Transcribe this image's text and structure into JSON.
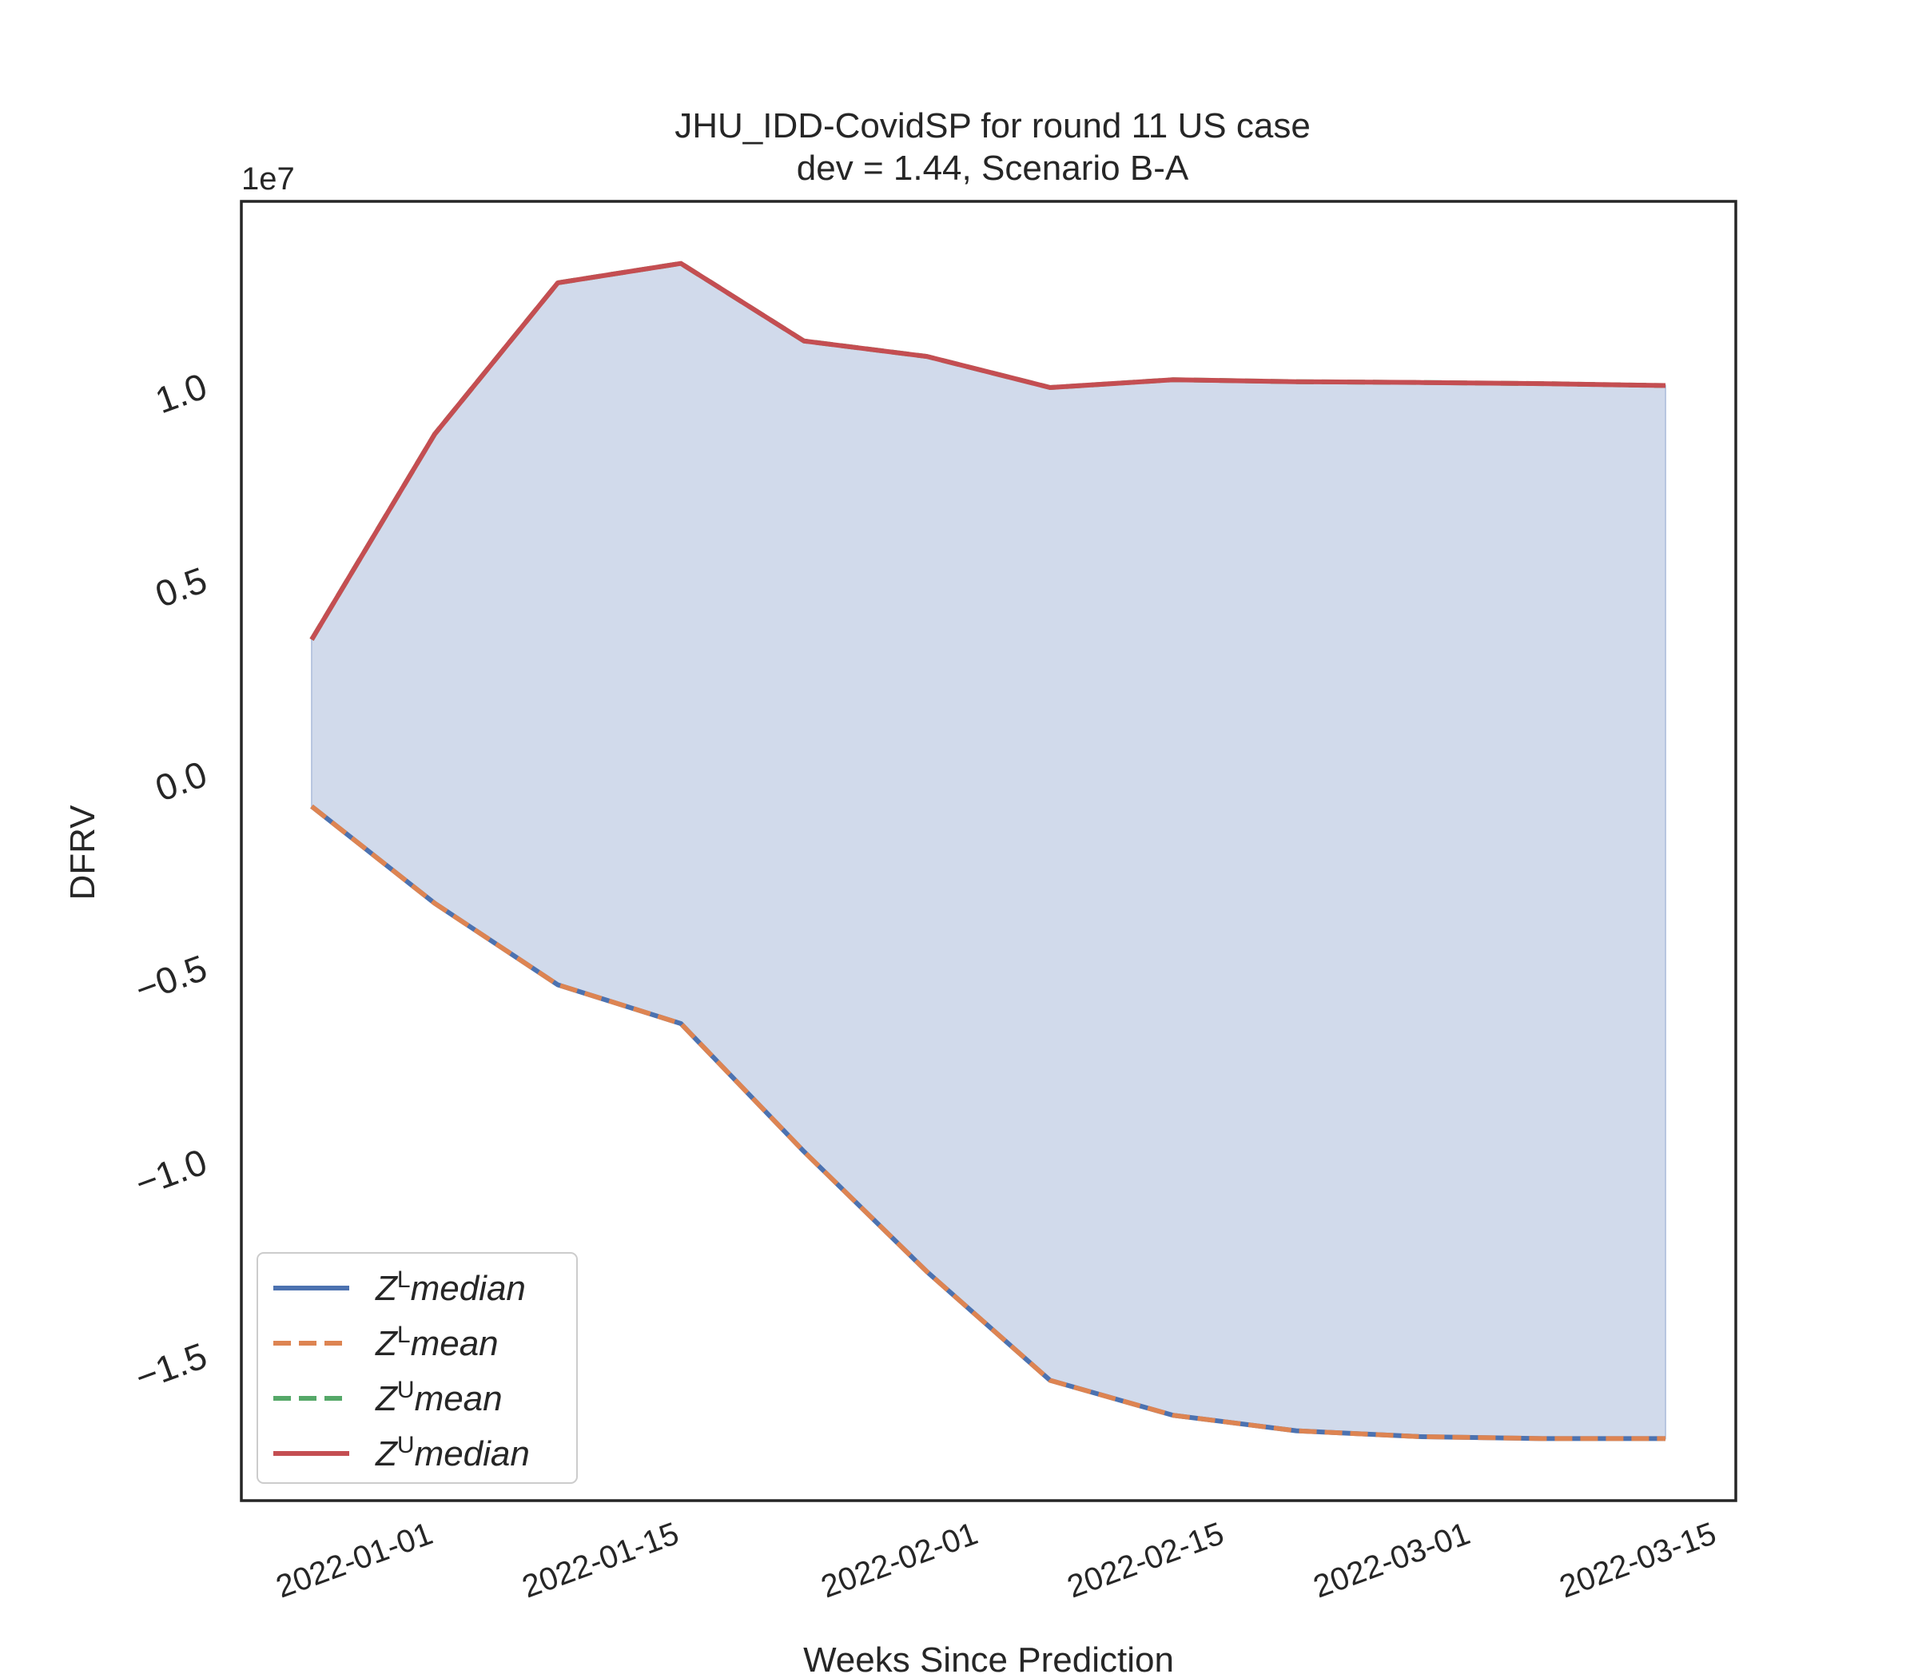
{
  "chart_data": {
    "type": "line",
    "title": "JHU_IDD-CovidSP for round 11 US case",
    "subtitle": "dev = 1.44, Scenario B-A",
    "xlabel": "Weeks Since Prediction",
    "ylabel": "DFRV",
    "y_offset_label": "1e7",
    "x": [
      "2021-12-25",
      "2022-01-01",
      "2022-01-08",
      "2022-01-15",
      "2022-01-22",
      "2022-01-29",
      "2022-02-05",
      "2022-02-12",
      "2022-02-19",
      "2022-02-26",
      "2022-03-05",
      "2022-03-12"
    ],
    "x_ticks": [
      "2022-01-01",
      "2022-01-15",
      "2022-02-01",
      "2022-02-15",
      "2022-03-01",
      "2022-03-15"
    ],
    "x_range": [
      "2021-12-21",
      "2022-03-16"
    ],
    "y_ticks": [
      1.0,
      0.5,
      0.0,
      -0.5,
      -1.0,
      -1.5
    ],
    "ylim": [
      -1.88,
      1.47
    ],
    "grid": false,
    "legend_position": "lower-left",
    "fill_between": {
      "lower": "Z^L median",
      "upper": "Z^U median",
      "color": "#d1daeb"
    },
    "series": [
      {
        "name": "Z^L median",
        "label_base": "Z",
        "label_sup": "L",
        "label_rest": "median",
        "style": "solid",
        "color": "#4c72b0",
        "values": [
          -0.09,
          -0.34,
          -0.55,
          -0.65,
          -0.98,
          -1.29,
          -1.57,
          -1.66,
          -1.7,
          -1.715,
          -1.72,
          -1.72
        ]
      },
      {
        "name": "Z^L mean",
        "label_base": "Z",
        "label_sup": "L",
        "label_rest": "mean",
        "style": "dashed",
        "color": "#dd8452",
        "values": [
          -0.09,
          -0.34,
          -0.55,
          -0.65,
          -0.98,
          -1.29,
          -1.57,
          -1.66,
          -1.7,
          -1.715,
          -1.72,
          -1.72
        ]
      },
      {
        "name": "Z^U mean",
        "label_base": "Z",
        "label_sup": "U",
        "label_rest": "mean",
        "style": "dashed",
        "color": "#55a868",
        "values": [
          0.34,
          0.87,
          1.26,
          1.31,
          1.11,
          1.07,
          0.99,
          1.01,
          1.005,
          1.003,
          1.0,
          0.995
        ]
      },
      {
        "name": "Z^U median",
        "label_base": "Z",
        "label_sup": "U",
        "label_rest": "median",
        "style": "solid",
        "color": "#c44e52",
        "values": [
          0.34,
          0.87,
          1.26,
          1.31,
          1.11,
          1.07,
          0.99,
          1.01,
          1.005,
          1.003,
          1.0,
          0.995
        ]
      }
    ]
  }
}
